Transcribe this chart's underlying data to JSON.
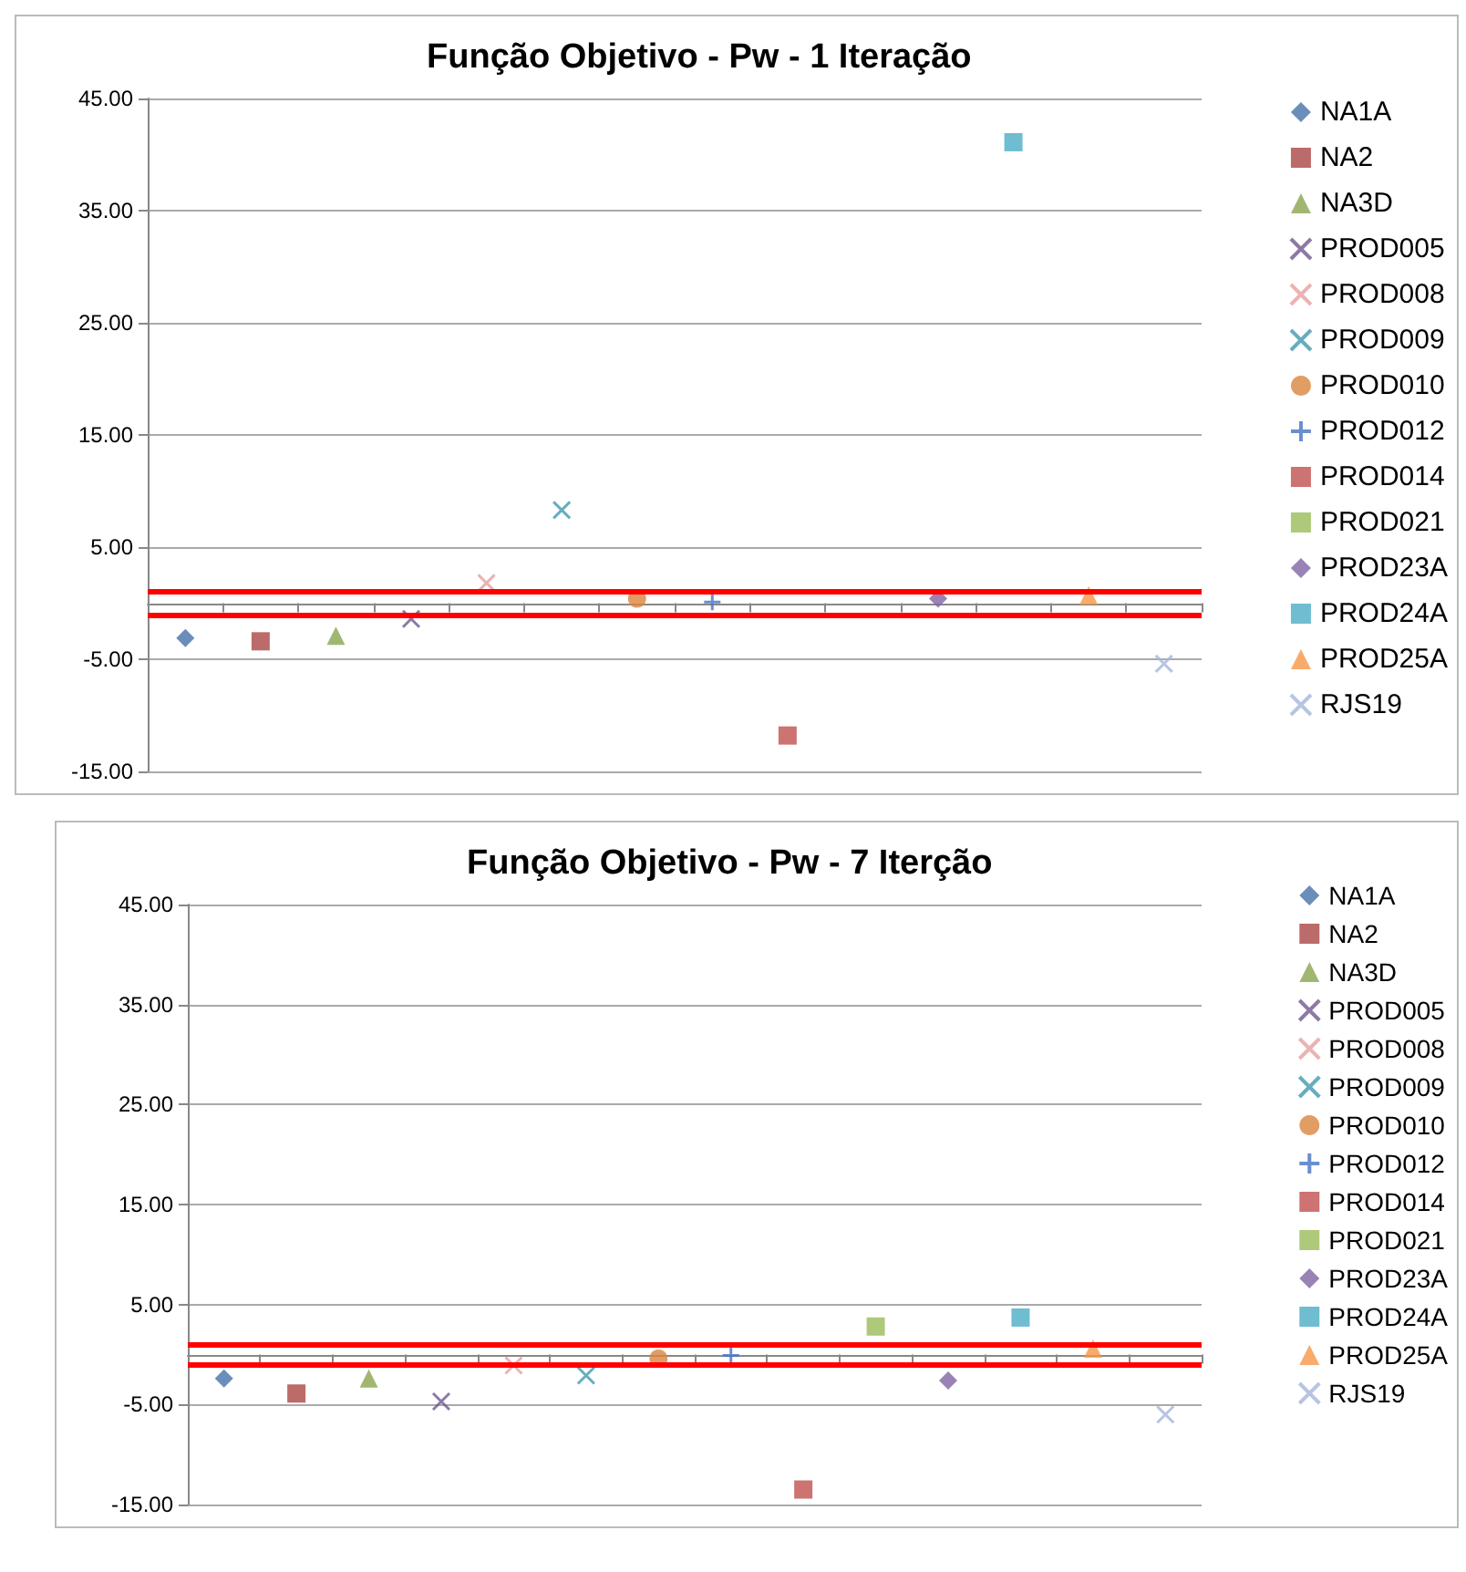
{
  "chart_data": [
    {
      "type": "scatter",
      "title": "Função Objetivo - Pw - 1 Iteração",
      "categories": [
        null,
        null,
        null,
        null,
        null,
        null,
        null,
        null,
        null,
        null,
        null,
        null,
        null,
        null
      ],
      "ylim": [
        -15,
        45
      ],
      "yticks": [
        {
          "value": -15,
          "label": "-15.00"
        },
        {
          "value": -5,
          "label": "-5.00"
        },
        {
          "value": 5,
          "label": "5.00"
        },
        {
          "value": 15,
          "label": "15.00"
        },
        {
          "value": 25,
          "label": "25.00"
        },
        {
          "value": 35,
          "label": "35.00"
        },
        {
          "value": 45,
          "label": "45.00"
        }
      ],
      "grid": "y",
      "legend": "right",
      "tick_labels": "y",
      "ref_lines": [
        {
          "axis": "y",
          "value": 1,
          "label": null,
          "color": "#ff0000"
        },
        {
          "axis": "y",
          "value": -1,
          "label": null,
          "color": "#ff0000"
        }
      ],
      "series": [
        {
          "name": "NA1A",
          "color": "#4572a7",
          "marker": "diamond",
          "values": [
            -3.1,
            null,
            null,
            null,
            null,
            null,
            null,
            null,
            null,
            null,
            null,
            null,
            null,
            null
          ]
        },
        {
          "name": "NA2",
          "color": "#aa4643",
          "marker": "square",
          "values": [
            null,
            -3.4,
            null,
            null,
            null,
            null,
            null,
            null,
            null,
            null,
            null,
            null,
            null,
            null
          ]
        },
        {
          "name": "NA3D",
          "color": "#89a54e",
          "marker": "triangle",
          "values": [
            null,
            null,
            -2.9,
            null,
            null,
            null,
            null,
            null,
            null,
            null,
            null,
            null,
            null,
            null
          ]
        },
        {
          "name": "PROD005",
          "color": "#71588f",
          "marker": "cross",
          "values": [
            null,
            null,
            null,
            -1.4,
            null,
            null,
            null,
            null,
            null,
            null,
            null,
            null,
            null,
            null
          ]
        },
        {
          "name": "PROD008",
          "color": "#e6a0a0",
          "marker": "cross",
          "values": [
            null,
            null,
            null,
            null,
            1.8,
            null,
            null,
            null,
            null,
            null,
            null,
            null,
            null,
            null
          ]
        },
        {
          "name": "PROD009",
          "color": "#4198af",
          "marker": "cross",
          "values": [
            null,
            null,
            null,
            null,
            null,
            8.3,
            null,
            null,
            null,
            null,
            null,
            null,
            null,
            null
          ]
        },
        {
          "name": "PROD010",
          "color": "#db843d",
          "marker": "circle",
          "values": [
            null,
            null,
            null,
            null,
            null,
            null,
            0.4,
            null,
            null,
            null,
            null,
            null,
            null,
            null
          ]
        },
        {
          "name": "PROD012",
          "color": "#4572c4",
          "marker": "plus",
          "values": [
            null,
            null,
            null,
            null,
            null,
            null,
            null,
            0.1,
            null,
            null,
            null,
            null,
            null,
            null
          ]
        },
        {
          "name": "PROD014",
          "color": "#c0504d",
          "marker": "square",
          "values": [
            null,
            null,
            null,
            null,
            null,
            null,
            null,
            null,
            -11.8,
            null,
            null,
            null,
            null,
            null
          ]
        },
        {
          "name": "PROD021",
          "color": "#9bbb59",
          "marker": "square",
          "values": [
            null,
            null,
            null,
            null,
            null,
            null,
            null,
            null,
            null,
            null,
            null,
            null,
            null,
            null
          ]
        },
        {
          "name": "PROD23A",
          "color": "#8064a2",
          "marker": "diamond",
          "values": [
            null,
            null,
            null,
            null,
            null,
            null,
            null,
            null,
            null,
            null,
            0.4,
            null,
            null,
            null
          ]
        },
        {
          "name": "PROD24A",
          "color": "#4bacc6",
          "marker": "square",
          "values": [
            null,
            null,
            null,
            null,
            null,
            null,
            null,
            null,
            null,
            null,
            null,
            41.1,
            null,
            null
          ]
        },
        {
          "name": "PROD25A",
          "color": "#f79646",
          "marker": "triangle",
          "values": [
            null,
            null,
            null,
            null,
            null,
            null,
            null,
            null,
            null,
            null,
            null,
            null,
            0.7,
            null
          ]
        },
        {
          "name": "RJS19",
          "color": "#a5b5db",
          "marker": "cross",
          "values": [
            null,
            null,
            null,
            null,
            null,
            null,
            null,
            null,
            null,
            null,
            null,
            null,
            null,
            -5.4
          ]
        }
      ]
    },
    {
      "type": "scatter",
      "title": "Função Objetivo - Pw - 7 Iterção",
      "categories": [
        null,
        null,
        null,
        null,
        null,
        null,
        null,
        null,
        null,
        null,
        null,
        null,
        null,
        null
      ],
      "ylim": [
        -15,
        45
      ],
      "yticks": [
        {
          "value": -15,
          "label": "-15.00"
        },
        {
          "value": -5,
          "label": "-5.00"
        },
        {
          "value": 5,
          "label": "5.00"
        },
        {
          "value": 15,
          "label": "15.00"
        },
        {
          "value": 25,
          "label": "25.00"
        },
        {
          "value": 35,
          "label": "35.00"
        },
        {
          "value": 45,
          "label": "45.00"
        }
      ],
      "grid": "y",
      "legend": "right",
      "tick_labels": "y",
      "ref_lines": [
        {
          "axis": "y",
          "value": 1,
          "label": null,
          "color": "#ff0000"
        },
        {
          "axis": "y",
          "value": -1,
          "label": null,
          "color": "#ff0000"
        }
      ],
      "series": [
        {
          "name": "NA1A",
          "color": "#4572a7",
          "marker": "diamond",
          "values": [
            -2.4,
            null,
            null,
            null,
            null,
            null,
            null,
            null,
            null,
            null,
            null,
            null,
            null,
            null
          ]
        },
        {
          "name": "NA2",
          "color": "#aa4643",
          "marker": "square",
          "values": [
            null,
            -3.9,
            null,
            null,
            null,
            null,
            null,
            null,
            null,
            null,
            null,
            null,
            null,
            null
          ]
        },
        {
          "name": "NA3D",
          "color": "#89a54e",
          "marker": "triangle",
          "values": [
            null,
            null,
            -2.4,
            null,
            null,
            null,
            null,
            null,
            null,
            null,
            null,
            null,
            null,
            null
          ]
        },
        {
          "name": "PROD005",
          "color": "#71588f",
          "marker": "cross",
          "values": [
            null,
            null,
            null,
            -4.7,
            null,
            null,
            null,
            null,
            null,
            null,
            null,
            null,
            null,
            null
          ]
        },
        {
          "name": "PROD008",
          "color": "#e6a0a0",
          "marker": "cross",
          "values": [
            null,
            null,
            null,
            null,
            -1.1,
            null,
            null,
            null,
            null,
            null,
            null,
            null,
            null,
            null
          ]
        },
        {
          "name": "PROD009",
          "color": "#4198af",
          "marker": "cross",
          "values": [
            null,
            null,
            null,
            null,
            null,
            -2.1,
            null,
            null,
            null,
            null,
            null,
            null,
            null,
            null
          ]
        },
        {
          "name": "PROD010",
          "color": "#db843d",
          "marker": "circle",
          "values": [
            null,
            null,
            null,
            null,
            null,
            null,
            -0.4,
            null,
            null,
            null,
            null,
            null,
            null,
            null
          ]
        },
        {
          "name": "PROD012",
          "color": "#4572c4",
          "marker": "plus",
          "values": [
            null,
            null,
            null,
            null,
            null,
            null,
            null,
            -0.1,
            null,
            null,
            null,
            null,
            null,
            null
          ]
        },
        {
          "name": "PROD014",
          "color": "#c0504d",
          "marker": "square",
          "values": [
            null,
            null,
            null,
            null,
            null,
            null,
            null,
            null,
            -13.5,
            null,
            null,
            null,
            null,
            null
          ]
        },
        {
          "name": "PROD021",
          "color": "#9bbb59",
          "marker": "square",
          "values": [
            null,
            null,
            null,
            null,
            null,
            null,
            null,
            null,
            null,
            2.8,
            null,
            null,
            null,
            null
          ]
        },
        {
          "name": "PROD23A",
          "color": "#8064a2",
          "marker": "diamond",
          "values": [
            null,
            null,
            null,
            null,
            null,
            null,
            null,
            null,
            null,
            null,
            -2.6,
            null,
            null,
            null
          ]
        },
        {
          "name": "PROD24A",
          "color": "#4bacc6",
          "marker": "square",
          "values": [
            null,
            null,
            null,
            null,
            null,
            null,
            null,
            null,
            null,
            null,
            null,
            3.7,
            null,
            null
          ]
        },
        {
          "name": "PROD25A",
          "color": "#f79646",
          "marker": "triangle",
          "values": [
            null,
            null,
            null,
            null,
            null,
            null,
            null,
            null,
            null,
            null,
            null,
            null,
            0.6,
            null
          ]
        },
        {
          "name": "RJS19",
          "color": "#a5b5db",
          "marker": "cross",
          "values": [
            null,
            null,
            null,
            null,
            null,
            null,
            null,
            null,
            null,
            null,
            null,
            null,
            null,
            -6.0
          ]
        }
      ]
    }
  ]
}
